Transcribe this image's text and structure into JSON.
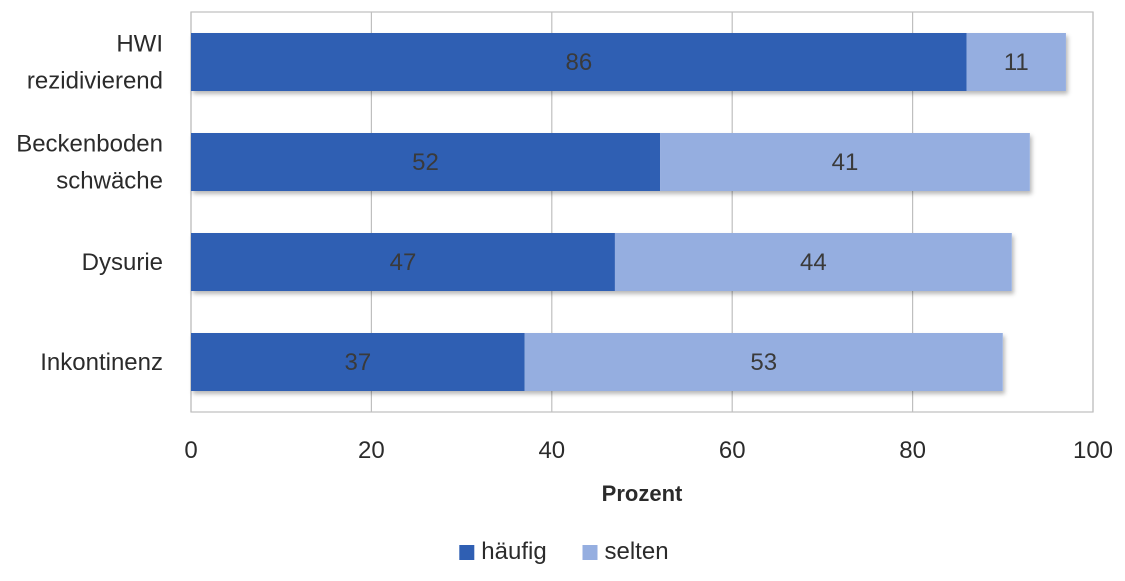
{
  "chart_data": {
    "type": "bar",
    "orientation": "horizontal",
    "stacked": true,
    "categories": [
      [
        "HWI",
        "rezidivierend"
      ],
      [
        "Beckenboden",
        "schwäche"
      ],
      [
        "Dysurie"
      ],
      [
        "Inkontinenz"
      ]
    ],
    "series": [
      {
        "name": "häufig",
        "color": "#2f5fb3",
        "values": [
          86,
          52,
          47,
          37
        ]
      },
      {
        "name": "selten",
        "color": "#95aee0",
        "values": [
          11,
          41,
          44,
          53
        ]
      }
    ],
    "xlabel": "Prozent",
    "xlim": [
      0,
      100
    ],
    "xticks": [
      0,
      20,
      40,
      60,
      80,
      100
    ],
    "grid": "vertical",
    "legend": "bottom",
    "data_labels": true
  }
}
